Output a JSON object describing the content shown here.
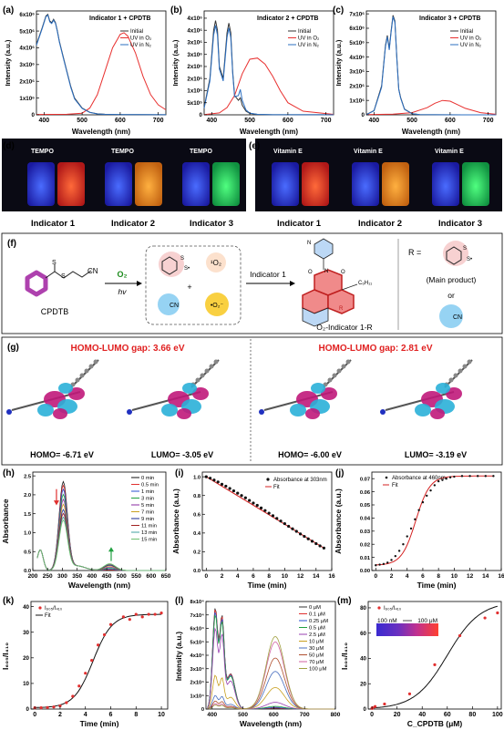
{
  "panels": {
    "a": {
      "letter": "(a)",
      "title": "Indicator 1 + CPDTB",
      "ylabel": "Intensity (a.u.)",
      "xlabel": "Wavelength (nm)",
      "yticks": [
        "0",
        "1x10⁶",
        "2x10⁶",
        "3x10⁶",
        "4x10⁶",
        "5x10⁶",
        "6x10⁶"
      ],
      "xticks": [
        "400",
        "500",
        "600",
        "700"
      ]
    },
    "b": {
      "letter": "(b)",
      "title": "Indicator 2 + CPDTB",
      "ylabel": "Intensity (a.u.)",
      "xlabel": "Wavelength (nm)",
      "yticks": [
        "0",
        "5x10⁵",
        "1x10⁶",
        "2x10⁶",
        "2x10⁶",
        "3x10⁶",
        "3x10⁶",
        "4x10⁶",
        "4x10⁶"
      ],
      "xticks": [
        "400",
        "500",
        "600",
        "700"
      ]
    },
    "c": {
      "letter": "(c)",
      "title": "Indicator 3 + CPDTB",
      "ylabel": "Intensity (a.u.)",
      "xlabel": "Wavelength (nm)",
      "yticks": [
        "0",
        "1x10⁶",
        "2x10⁶",
        "3x10⁶",
        "4x10⁶",
        "5x10⁶",
        "6x10⁶",
        "7x10⁶"
      ],
      "xticks": [
        "400",
        "500",
        "600",
        "700"
      ]
    },
    "legend_abc": [
      "Initial",
      "UV in O₂",
      "UV in N₂"
    ],
    "d": {
      "letter": "(d)",
      "labels": [
        "TEMPO",
        "TEMPO",
        "TEMPO"
      ],
      "captions": [
        "Indicator 1",
        "Indicator 2",
        "Indicator 3"
      ]
    },
    "e": {
      "letter": "(e)",
      "labels": [
        "Vitamin E",
        "Vitamin E",
        "Vitamin E"
      ],
      "captions": [
        "Indicator 1",
        "Indicator 2",
        "Indicator 3"
      ]
    },
    "f": {
      "letter": "(f)",
      "cpdtb": "CPDTB",
      "o2": "O₂",
      "hv": "hv",
      "singlet": "¹O₂",
      "superoxide": "•O₂⁻",
      "cn": "CN",
      "indicator": "Indicator 1",
      "product": "O₂-Indicator 1-R",
      "r_eq": "R =",
      "main_product": "(Main product)",
      "or": "or",
      "alkyl": "C₆H₁₁",
      "atom_o": "O",
      "atom_n": "N",
      "atom_r": "R",
      "atom_s": "S",
      "atom_s_radical": "S•"
    },
    "g": {
      "letter": "(g)",
      "gap_left": "HOMO-LUMO gap: 3.66 eV",
      "gap_right": "HOMO-LUMO gap: 2.81 eV",
      "orbitals": [
        "HOMO= -6.71 eV",
        "LUMO= -3.05 eV",
        "HOMO= -6.00 eV",
        "LUMO= -3.19 eV"
      ]
    },
    "h": {
      "letter": "(h)",
      "ylabel": "Absorbance",
      "xlabel": "Wavelength (nm)",
      "yticks": [
        "0.0",
        "0.5",
        "1.0",
        "1.5",
        "2.0",
        "2.5"
      ],
      "xticks": [
        "200",
        "250",
        "300",
        "350",
        "400",
        "450",
        "500",
        "550",
        "600",
        "650"
      ],
      "legend": [
        "0 min",
        "0.5 min",
        "1 min",
        "3 min",
        "5 min",
        "7 min",
        "9 min",
        "11 min",
        "13 min",
        "15 min"
      ]
    },
    "i": {
      "letter": "(i)",
      "ylabel": "Absorbance (a.u.)",
      "xlabel": "Time (min)",
      "yticks": [
        "0.0",
        "0.2",
        "0.4",
        "0.6",
        "0.8",
        "1.0"
      ],
      "xticks": [
        "0",
        "2",
        "4",
        "6",
        "8",
        "10",
        "12",
        "14",
        "16"
      ],
      "legend": [
        "Absorbance at 303nm",
        "Fit"
      ]
    },
    "j": {
      "letter": "(j)",
      "ylabel": "Absorbance (a.u.)",
      "xlabel": "Time (min)",
      "yticks": [
        "0.00",
        "0.01",
        "0.02",
        "0.03",
        "0.04",
        "0.05",
        "0.06",
        "0.07"
      ],
      "xticks": [
        "0",
        "2",
        "4",
        "6",
        "8",
        "10",
        "12",
        "14",
        "16"
      ],
      "legend": [
        "Absorbance at 460nm",
        "Fit"
      ]
    },
    "k": {
      "letter": "(k)",
      "ylabel": "I₆₀₅/I₄₁₀",
      "xlabel": "Time (min)",
      "yticks": [
        "0",
        "10",
        "20",
        "30",
        "40"
      ],
      "xticks": [
        "0",
        "2",
        "4",
        "6",
        "8",
        "10"
      ],
      "legend": [
        "I₆₀₅/I₄₁₀",
        "Fit"
      ]
    },
    "l": {
      "letter": "(l)",
      "ylabel": "Intensity (a.u.)",
      "xlabel": "Wavelength (nm)",
      "yticks": [
        "0",
        "1x10⁴",
        "2x10⁴",
        "3x10⁴",
        "4x10⁴",
        "5x10⁴",
        "6x10⁴",
        "7x10⁴",
        "8x10⁴"
      ],
      "xticks": [
        "400",
        "500",
        "600",
        "700",
        "800"
      ],
      "legend": [
        "0 μM",
        "0.1 μM",
        "0.25 μM",
        "0.5 μM",
        "2.5 μM",
        "10 μM",
        "30 μM",
        "50 μM",
        "70 μM",
        "100 μM"
      ]
    },
    "m": {
      "letter": "(m)",
      "ylabel": "I₆₀₅/I₄₁₀",
      "xlabel": "C_CPDTB (μM)",
      "yticks": [
        "0",
        "20",
        "40",
        "60",
        "80"
      ],
      "xticks": [
        "0",
        "20",
        "40",
        "60",
        "80",
        "100"
      ],
      "legend": [
        "I₆₀₅/I₄₁₀",
        "Fit"
      ],
      "range_from": "100 nM",
      "range_to": "100 μM"
    }
  },
  "colors": {
    "initial": "#333333",
    "o2": "#e8302f",
    "n2": "#2b6fc2",
    "fit": "#d42020",
    "dots": "#e23030"
  },
  "chart_data": [
    {
      "type": "line",
      "id": "a",
      "xlim": [
        380,
        720
      ],
      "ylim": [
        0,
        6200000
      ],
      "series": [
        {
          "name": "Initial",
          "x": [
            380,
            395,
            405,
            410,
            415,
            420,
            425,
            430,
            435,
            440,
            450,
            460,
            470,
            480,
            500,
            520,
            540,
            560,
            600,
            650,
            720
          ],
          "y": [
            4200000,
            5200000,
            5900000,
            6000000,
            5600000,
            5500000,
            5700000,
            5500000,
            5000000,
            4400000,
            3500000,
            2600000,
            1700000,
            1000000,
            400000,
            150000,
            60000,
            30000,
            15000,
            10000,
            8000
          ]
        },
        {
          "name": "UV in O₂",
          "x": [
            380,
            460,
            500,
            520,
            540,
            560,
            580,
            600,
            610,
            620,
            640,
            660,
            680,
            700,
            720
          ],
          "y": [
            20000,
            30000,
            100000,
            400000,
            1200000,
            2600000,
            4000000,
            4800000,
            4900000,
            4700000,
            3700000,
            2300000,
            1200000,
            600000,
            300000
          ]
        },
        {
          "name": "UV in N₂",
          "x": [
            380,
            395,
            405,
            410,
            415,
            420,
            425,
            430,
            435,
            440,
            450,
            460,
            470,
            480,
            500,
            520,
            540,
            560,
            600,
            650,
            720
          ],
          "y": [
            4150000,
            5150000,
            5850000,
            5950000,
            5550000,
            5450000,
            5650000,
            5450000,
            4950000,
            4350000,
            3450000,
            2550000,
            1650000,
            950000,
            380000,
            140000,
            55000,
            28000,
            14000,
            9000,
            7000
          ]
        }
      ]
    },
    {
      "type": "line",
      "id": "b",
      "xlim": [
        380,
        720
      ],
      "ylim": [
        0,
        4300000
      ],
      "series": [
        {
          "name": "Initial",
          "x": [
            380,
            395,
            405,
            410,
            415,
            420,
            430,
            440,
            445,
            450,
            455,
            460,
            470,
            475,
            480,
            490,
            500,
            520,
            560,
            720
          ],
          "y": [
            300000,
            1500000,
            3500000,
            3900000,
            3500000,
            2000000,
            1500000,
            3400000,
            3800000,
            3400000,
            1800000,
            800000,
            600000,
            700000,
            400000,
            150000,
            60000,
            20000,
            5000,
            2000
          ]
        },
        {
          "name": "UV in O₂",
          "x": [
            380,
            420,
            440,
            460,
            480,
            500,
            520,
            540,
            560,
            580,
            600,
            640,
            720
          ],
          "y": [
            10000,
            80000,
            300000,
            800000,
            1700000,
            2300000,
            2350000,
            2100000,
            1600000,
            1000000,
            500000,
            150000,
            20000
          ]
        },
        {
          "name": "UV in N₂",
          "x": [
            380,
            395,
            405,
            410,
            415,
            420,
            430,
            440,
            445,
            450,
            455,
            460,
            470,
            475,
            480,
            490,
            500,
            520,
            560,
            720
          ],
          "y": [
            280000,
            1400000,
            3300000,
            3700000,
            3300000,
            1900000,
            1400000,
            3200000,
            3600000,
            3200000,
            1700000,
            750000,
            800000,
            1050000,
            600000,
            200000,
            70000,
            20000,
            5000,
            2000
          ]
        }
      ]
    },
    {
      "type": "line",
      "id": "c",
      "xlim": [
        380,
        720
      ],
      "ylim": [
        0,
        7200000
      ],
      "series": [
        {
          "name": "Initial",
          "x": [
            380,
            400,
            420,
            430,
            435,
            440,
            445,
            450,
            455,
            460,
            465,
            470,
            480,
            500,
            520,
            560,
            720
          ],
          "y": [
            20000,
            300000,
            2000000,
            4800000,
            5500000,
            4600000,
            5800000,
            6900000,
            6500000,
            4000000,
            1800000,
            1200000,
            400000,
            80000,
            20000,
            5000,
            2000
          ]
        },
        {
          "name": "UV in O₂",
          "x": [
            380,
            450,
            500,
            540,
            560,
            580,
            600,
            620,
            640,
            680,
            720
          ],
          "y": [
            10000,
            50000,
            150000,
            500000,
            800000,
            1000000,
            950000,
            700000,
            450000,
            150000,
            40000
          ]
        },
        {
          "name": "UV in N₂",
          "x": [
            380,
            400,
            420,
            430,
            435,
            440,
            445,
            450,
            455,
            460,
            465,
            470,
            480,
            500,
            520,
            560,
            720
          ],
          "y": [
            20000,
            280000,
            1900000,
            4700000,
            5400000,
            4500000,
            5700000,
            6800000,
            6400000,
            3900000,
            1750000,
            1150000,
            380000,
            75000,
            18000,
            4000,
            1500
          ]
        }
      ]
    },
    {
      "type": "line",
      "id": "h",
      "xlim": [
        200,
        650
      ],
      "ylim": [
        0,
        2.6
      ],
      "categories": [
        "0 min",
        "0.5 min",
        "1 min",
        "3 min",
        "5 min",
        "7 min",
        "9 min",
        "11 min",
        "13 min",
        "15 min"
      ],
      "peak303": [
        2.32,
        2.22,
        2.12,
        1.98,
        1.85,
        1.72,
        1.58,
        1.48,
        1.38,
        1.3
      ],
      "peak460": [
        0.0,
        0.02,
        0.04,
        0.06,
        0.09,
        0.12,
        0.14,
        0.16,
        0.17,
        0.18
      ]
    },
    {
      "type": "scatter",
      "id": "i",
      "xlim": [
        -0.5,
        16
      ],
      "ylim": [
        0,
        1.05
      ],
      "series": [
        {
          "name": "Absorbance at 303nm",
          "x": [
            0,
            0.5,
            1,
            1.5,
            2,
            2.5,
            3,
            3.5,
            4,
            4.5,
            5,
            5.5,
            6,
            6.5,
            7,
            7.5,
            8,
            8.5,
            9,
            9.5,
            10,
            10.5,
            11,
            11.5,
            12,
            12.5,
            13,
            13.5,
            14,
            14.5,
            15
          ],
          "y": [
            1.0,
            0.985,
            0.965,
            0.945,
            0.92,
            0.9,
            0.875,
            0.85,
            0.825,
            0.8,
            0.775,
            0.748,
            0.72,
            0.695,
            0.667,
            0.64,
            0.612,
            0.585,
            0.556,
            0.528,
            0.5,
            0.472,
            0.445,
            0.418,
            0.39,
            0.364,
            0.338,
            0.312,
            0.287,
            0.263,
            0.24
          ]
        },
        {
          "name": "Fit",
          "x": [
            0,
            15
          ],
          "y": [
            1.0,
            0.24
          ]
        }
      ]
    },
    {
      "type": "line",
      "id": "j",
      "xlim": [
        -0.5,
        16
      ],
      "ylim": [
        0,
        0.075
      ],
      "series": [
        {
          "name": "Absorbance at 460nm",
          "x": [
            0,
            0.5,
            1,
            1.5,
            2,
            2.5,
            3,
            3.5,
            4,
            4.5,
            5,
            5.5,
            6,
            6.5,
            7,
            7.5,
            8,
            8.5,
            9,
            9.5,
            10,
            11,
            12,
            13,
            14,
            15
          ],
          "y": [
            0.004,
            0.0045,
            0.005,
            0.006,
            0.008,
            0.011,
            0.015,
            0.02,
            0.026,
            0.032,
            0.039,
            0.046,
            0.052,
            0.057,
            0.061,
            0.065,
            0.068,
            0.069,
            0.07,
            0.071,
            0.0715,
            0.072,
            0.072,
            0.072,
            0.072,
            0.072
          ]
        },
        {
          "name": "Fit",
          "x": [],
          "y": []
        }
      ]
    },
    {
      "type": "scatter",
      "id": "k",
      "xlim": [
        -0.3,
        10.5
      ],
      "ylim": [
        0,
        42
      ],
      "series": [
        {
          "name": "I₆₀₅/I₄₁₀",
          "x": [
            0,
            0.5,
            1,
            1.5,
            2,
            2.5,
            3,
            3.5,
            4,
            4.5,
            5,
            5.5,
            6,
            7,
            7.5,
            8,
            8.5,
            9,
            9.5,
            10
          ],
          "y": [
            0.5,
            0.5,
            0.6,
            0.8,
            1.2,
            2.5,
            5,
            9,
            14,
            19,
            25,
            29,
            33,
            36,
            35,
            37,
            36,
            37,
            37,
            37.5
          ]
        },
        {
          "name": "Fit",
          "x": [],
          "y": []
        }
      ]
    },
    {
      "type": "line",
      "id": "l",
      "xlim": [
        380,
        800
      ],
      "ylim": [
        0,
        80000
      ],
      "categories": [
        "0 μM",
        "0.1 μM",
        "0.25 μM",
        "0.5 μM",
        "2.5 μM",
        "10 μM",
        "30 μM",
        "50 μM",
        "70 μM",
        "100 μM"
      ],
      "peak410": [
        75000,
        74000,
        72000,
        70000,
        60000,
        25000,
        10000,
        6000,
        4000,
        3000
      ],
      "peak605": [
        500,
        800,
        1200,
        2000,
        5000,
        16000,
        28000,
        38000,
        50000,
        54000
      ]
    },
    {
      "type": "scatter",
      "id": "m",
      "xlim": [
        -3,
        103
      ],
      "ylim": [
        0,
        85
      ],
      "series": [
        {
          "name": "I₆₀₅/I₄₁₀",
          "x": [
            0,
            0.1,
            0.25,
            0.5,
            2.5,
            10,
            30,
            50,
            70,
            90,
            100
          ],
          "y": [
            0.5,
            0.6,
            0.8,
            1,
            2,
            4,
            12,
            35,
            58,
            72,
            76
          ]
        },
        {
          "name": "Fit",
          "x": [],
          "y": []
        }
      ]
    }
  ]
}
